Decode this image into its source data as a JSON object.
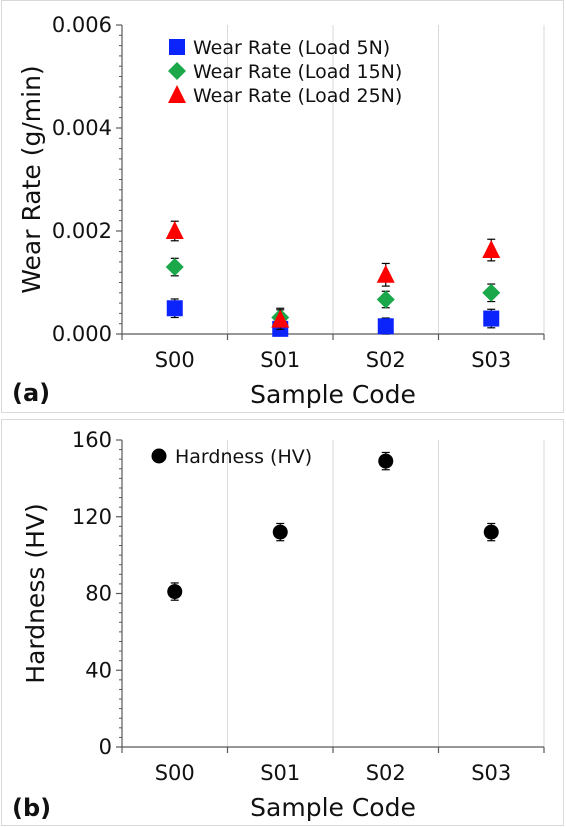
{
  "chart_data": [
    {
      "panel_label": "(a)",
      "type": "scatter",
      "categories": [
        "S00",
        "S01",
        "S02",
        "S03"
      ],
      "xlabel": "Sample Code",
      "ylabel": "Wear Rate (g/min)",
      "ylim": [
        0,
        0.006
      ],
      "yticks": [
        "0.000",
        "0.002",
        "0.004",
        "0.006"
      ],
      "grid": "vertical",
      "legend_position": "top-left",
      "series": [
        {
          "name": "Wear Rate (Load 5N)",
          "marker": "square",
          "color": "#0b24fb",
          "values": [
            0.0005,
            0.0001,
            0.00015,
            0.0003
          ],
          "errors": [
            0.00018,
            0.0001,
            0.00016,
            0.00018
          ]
        },
        {
          "name": "Wear Rate (Load 15N)",
          "marker": "diamond",
          "color": "#1aa84b",
          "values": [
            0.0013,
            0.00032,
            0.00067,
            0.0008
          ],
          "errors": [
            0.00017,
            0.00018,
            0.00016,
            0.00017
          ]
        },
        {
          "name": "Wear Rate (Load 25N)",
          "marker": "triangle",
          "color": "#ff0000",
          "values": [
            0.002,
            0.00028,
            0.00115,
            0.00163
          ],
          "errors": [
            0.00019,
            0.00019,
            0.00022,
            0.00021
          ]
        }
      ]
    },
    {
      "panel_label": "(b)",
      "type": "scatter",
      "categories": [
        "S00",
        "S01",
        "S02",
        "S03"
      ],
      "xlabel": "Sample Code",
      "ylabel": "Hardness (HV)",
      "ylim": [
        0,
        160
      ],
      "yticks": [
        "0",
        "40",
        "80",
        "120",
        "160"
      ],
      "grid": "vertical",
      "legend_position": "top-left",
      "series": [
        {
          "name": "Hardness (HV)",
          "marker": "circle",
          "color": "#000000",
          "values": [
            81,
            112,
            149,
            112
          ],
          "errors": [
            4.5,
            4.5,
            4.5,
            4.5
          ]
        }
      ]
    }
  ]
}
